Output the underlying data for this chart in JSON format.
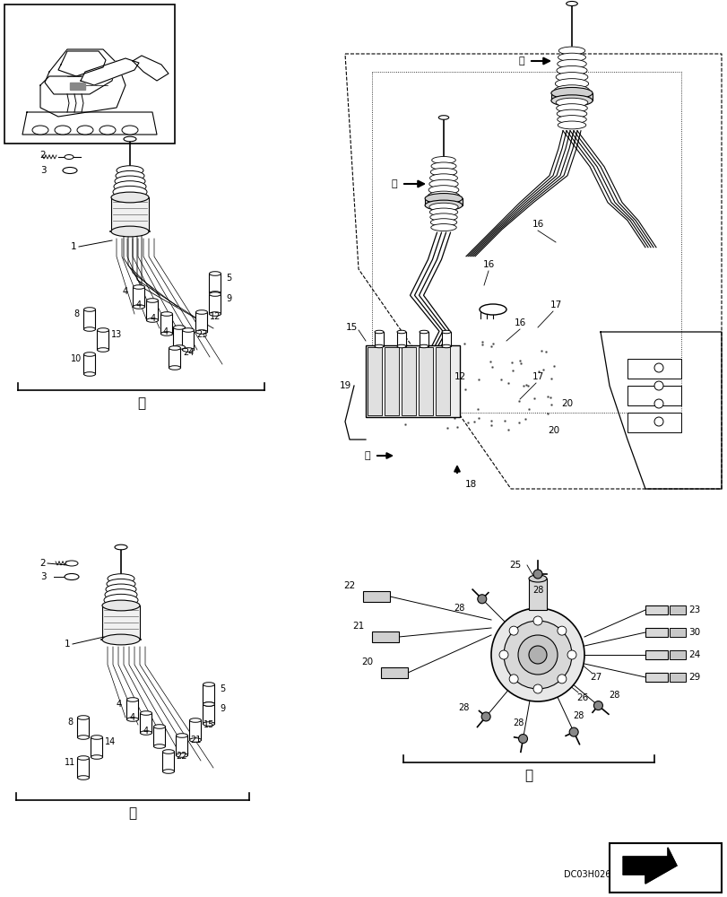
{
  "bg_color": "#ffffff",
  "fig_width": 8.12,
  "fig_height": 10.0,
  "dpi": 100,
  "part_code": "DC03H026"
}
